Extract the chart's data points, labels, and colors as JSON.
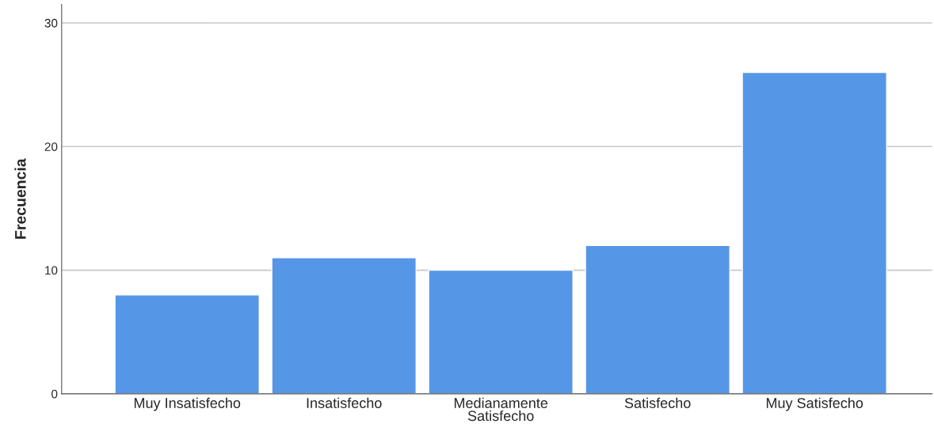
{
  "chart_data": {
    "type": "bar",
    "ylabel": "Frecuencia",
    "categories": [
      "Muy Insatisfecho",
      "Insatisfecho",
      "Medianamente\nSatisfecho",
      "Satisfecho",
      "Muy Satisfecho"
    ],
    "values": [
      8,
      11,
      10,
      12,
      26
    ],
    "color": "#5596e6",
    "ylim": [
      0,
      31.5
    ],
    "yticks": [
      0,
      10,
      20,
      30
    ],
    "grid": "y"
  }
}
